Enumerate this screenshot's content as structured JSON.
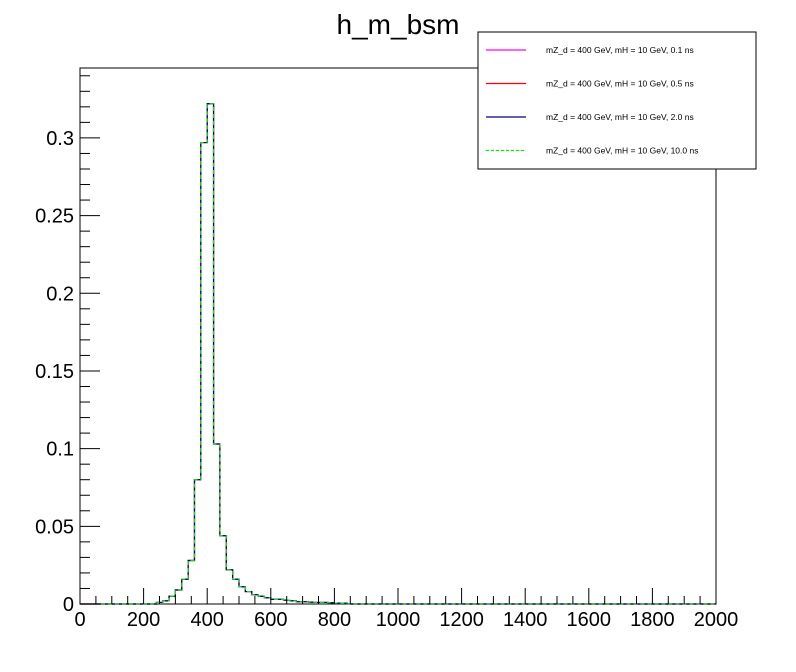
{
  "chart_data": {
    "type": "line",
    "title": "h_m_bsm",
    "xlabel": "",
    "ylabel": "",
    "xlim": [
      0,
      2000
    ],
    "ylim": [
      0,
      0.345
    ],
    "x_ticks": [
      0,
      200,
      400,
      600,
      800,
      1000,
      1200,
      1400,
      1600,
      1800,
      2000
    ],
    "x_tick_labels": [
      "0",
      "200",
      "400",
      "600",
      "800",
      "1000",
      "1200",
      "1400",
      "1600",
      "1800",
      "2000"
    ],
    "y_ticks": [
      0,
      0.05,
      0.1,
      0.15,
      0.2,
      0.25,
      0.3
    ],
    "y_tick_labels": [
      "0",
      "0.05",
      "0.1",
      "0.15",
      "0.2",
      "0.25",
      "0.3"
    ],
    "bin_width": 20,
    "legend_position": "top-right",
    "grid": false,
    "x": [
      250,
      270,
      290,
      310,
      330,
      350,
      370,
      390,
      410,
      430,
      450,
      470,
      490,
      510,
      530,
      550,
      570,
      590,
      610,
      630,
      650,
      670,
      690,
      710,
      730,
      750,
      770,
      790,
      810,
      830
    ],
    "series": [
      {
        "name": "mZ_d = 400 GeV, mH = 10 GeV, 0.1 ns",
        "color": "#ff00ff",
        "dash": "solid",
        "values": [
          0.001,
          0.002,
          0.005,
          0.009,
          0.016,
          0.028,
          0.08,
          0.297,
          0.322,
          0.103,
          0.044,
          0.022,
          0.016,
          0.011,
          0.008,
          0.006,
          0.005,
          0.004,
          0.003,
          0.003,
          0.0025,
          0.002,
          0.0015,
          0.0015,
          0.0012,
          0.001,
          0.001,
          0.0008,
          0.0006,
          0.0005
        ]
      },
      {
        "name": "mZ_d = 400 GeV, mH = 10 GeV, 0.5 ns",
        "color": "#ff0000",
        "dash": "solid",
        "values": [
          0.001,
          0.002,
          0.005,
          0.009,
          0.016,
          0.028,
          0.08,
          0.297,
          0.322,
          0.103,
          0.044,
          0.022,
          0.016,
          0.011,
          0.008,
          0.006,
          0.005,
          0.004,
          0.003,
          0.003,
          0.0025,
          0.002,
          0.0015,
          0.0015,
          0.0012,
          0.001,
          0.001,
          0.0008,
          0.0006,
          0.0005
        ]
      },
      {
        "name": "mZ_d = 400 GeV, mH = 10 GeV, 2.0 ns",
        "color": "#000080",
        "dash": "solid",
        "values": [
          0.001,
          0.002,
          0.005,
          0.009,
          0.016,
          0.028,
          0.08,
          0.297,
          0.322,
          0.103,
          0.044,
          0.022,
          0.016,
          0.011,
          0.008,
          0.006,
          0.005,
          0.004,
          0.003,
          0.003,
          0.0025,
          0.002,
          0.0015,
          0.0015,
          0.0012,
          0.001,
          0.001,
          0.0008,
          0.0006,
          0.0005
        ]
      },
      {
        "name": "mZ_d = 400 GeV, mH = 10 GeV, 10.0 ns",
        "color": "#00ee00",
        "dash": "dashed",
        "values": [
          0.001,
          0.002,
          0.005,
          0.009,
          0.016,
          0.028,
          0.08,
          0.297,
          0.322,
          0.103,
          0.044,
          0.022,
          0.016,
          0.011,
          0.008,
          0.006,
          0.005,
          0.004,
          0.003,
          0.003,
          0.0025,
          0.002,
          0.0015,
          0.0015,
          0.0012,
          0.001,
          0.001,
          0.0008,
          0.0006,
          0.0005
        ]
      }
    ]
  }
}
